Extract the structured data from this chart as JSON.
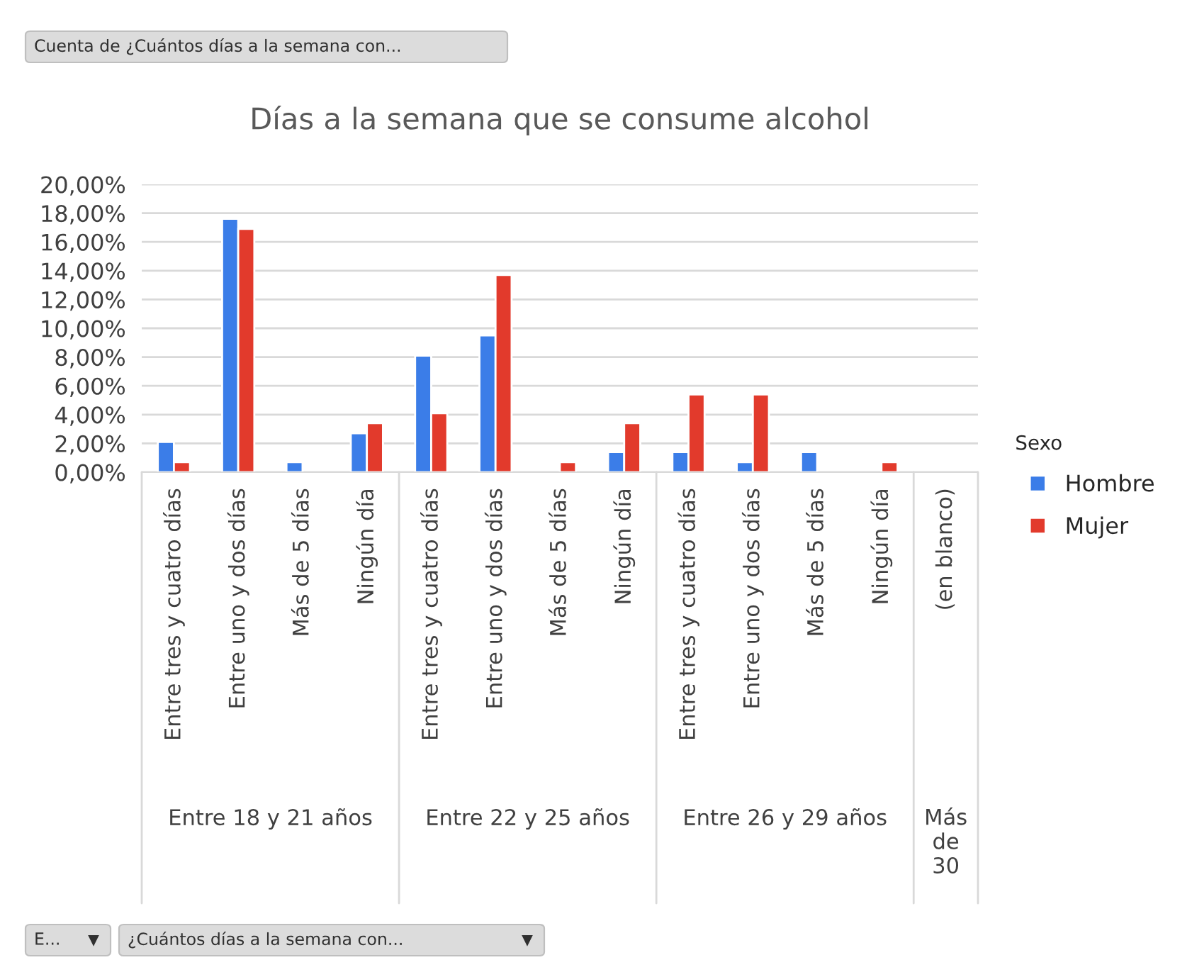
{
  "chart_data": {
    "type": "bar",
    "title": "Días a la semana que se consume alcohol",
    "categories": [
      "Entre tres y cuatro días",
      "Entre uno y dos días",
      "Más de 5 días",
      "Ningún día",
      "Entre tres y cuatro días",
      "Entre uno y dos días",
      "Más de 5 días",
      "Ningún día",
      "Entre tres y cuatro días",
      "Entre uno y dos días",
      "Más de 5 días",
      "Ningún día",
      "(en blanco)"
    ],
    "series": [
      {
        "name": "Hombre",
        "color": "#3b7de8",
        "values": [
          2.1,
          17.6,
          0.7,
          2.7,
          8.1,
          9.5,
          null,
          1.4,
          1.4,
          0.7,
          1.4,
          null,
          null
        ]
      },
      {
        "name": "Mujer",
        "color": "#e23a2c",
        "values": [
          0.7,
          16.9,
          null,
          3.4,
          4.1,
          13.7,
          0.7,
          3.4,
          5.4,
          5.4,
          null,
          0.7,
          null
        ]
      }
    ],
    "ylim": [
      0,
      20
    ],
    "yticks": [
      {
        "value": 0,
        "label": "0,00%"
      },
      {
        "value": 2,
        "label": "2,00%"
      },
      {
        "value": 4,
        "label": "4,00%"
      },
      {
        "value": 6,
        "label": "6,00%"
      },
      {
        "value": 8,
        "label": "8,00%"
      },
      {
        "value": 10,
        "label": "10,00%"
      },
      {
        "value": 12,
        "label": "12,00%"
      },
      {
        "value": 14,
        "label": "14,00%"
      },
      {
        "value": 16,
        "label": "16,00%"
      },
      {
        "value": 18,
        "label": "18,00%"
      },
      {
        "value": 20,
        "label": "20,00%"
      }
    ],
    "grid": "y",
    "legend": "right",
    "legend_title": "Sexo",
    "annotations": [
      "Entre 18 y 21 años",
      "Entre 22 y 25 años",
      "Entre 26 y 29 años",
      "Más\nde\n30",
      "Cuenta de ¿Cuántos días a la semana con...",
      "E...",
      "¿Cuántos días a la semana con..."
    ]
  }
}
